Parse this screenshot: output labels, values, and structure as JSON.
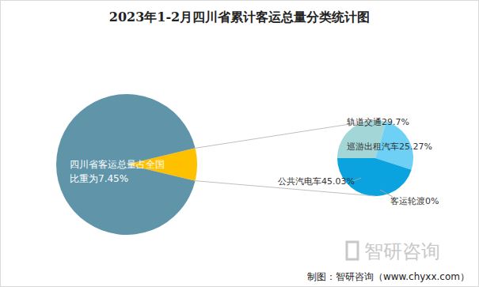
{
  "chart_data": [
    {
      "type": "pie",
      "title": "2023年1-2月四川省累计客运总量分类统计图",
      "values": [
        7.45,
        92.55
      ],
      "colors": [
        "#ffc000",
        "#6094a9"
      ],
      "annotation": "四川省客运总量占全国比重为7.45%",
      "watermark": "智研咨询",
      "source": "制图：智研咨询（www.chyxx.com）"
    },
    {
      "type": "pie",
      "categories": [
        "轨道交通",
        "巡游出租汽车",
        "公共汽电车",
        "客运轮渡"
      ],
      "values": [
        29.7,
        25.27,
        45.03,
        0
      ],
      "value_labels": [
        "29.7%",
        "25.27%",
        "45.03%",
        "0%"
      ],
      "colors": [
        "#a3d6d7",
        "#6fd0f6",
        "#0aa2df",
        "#1a5fa0"
      ],
      "data_labels": true
    }
  ]
}
